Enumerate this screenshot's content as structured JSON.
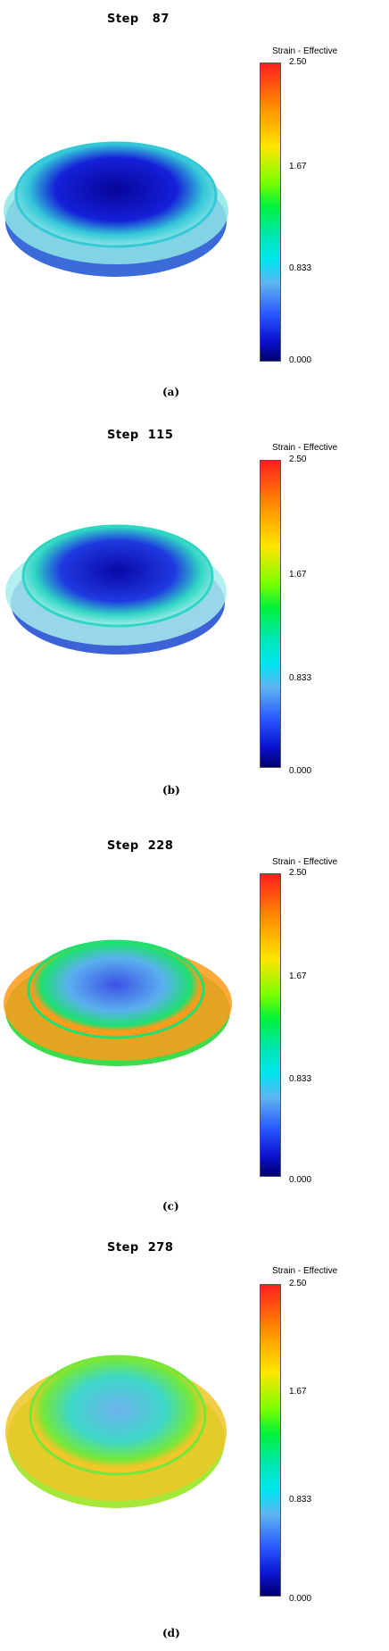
{
  "panels": [
    {
      "step_title": "Step   87",
      "legend_title": "Strain - Effective",
      "ticks": [
        "2.50",
        "1.67",
        "0.833",
        "0.000"
      ],
      "caption": "(a)",
      "colors": {
        "center": "#07069a",
        "mid": "#1520d8",
        "ring": "#34c8d8",
        "rim": "#8fe6e6",
        "base": "#3a6bd8"
      }
    },
    {
      "step_title": "Step  115",
      "legend_title": "Strain - Effective",
      "ticks": [
        "2.50",
        "1.67",
        "0.833",
        "0.000"
      ],
      "caption": "(b)",
      "colors": {
        "center": "#0a08a8",
        "mid": "#1f3ae0",
        "ring": "#30d6c4",
        "rim": "#a8ecec",
        "base": "#3b62d6"
      }
    },
    {
      "step_title": "Step  228",
      "legend_title": "Strain - Effective",
      "ticks": [
        "2.50",
        "1.67",
        "0.833",
        "0.000"
      ],
      "caption": "(c)",
      "colors": {
        "center": "#3d52e6",
        "mid": "#5ab0ee",
        "ring": "#1ee070",
        "rim": "#ff9a1a",
        "base": "#3cdc4e"
      }
    },
    {
      "step_title": "Step  278",
      "legend_title": "Strain - Effective",
      "ticks": [
        "2.50",
        "1.67",
        "0.833",
        "0.000"
      ],
      "caption": "(d)",
      "colors": {
        "center": "#6db2ee",
        "mid": "#3ed8c8",
        "ring": "#74e83a",
        "rim": "#f0c628",
        "base": "#a6e83a"
      }
    }
  ]
}
